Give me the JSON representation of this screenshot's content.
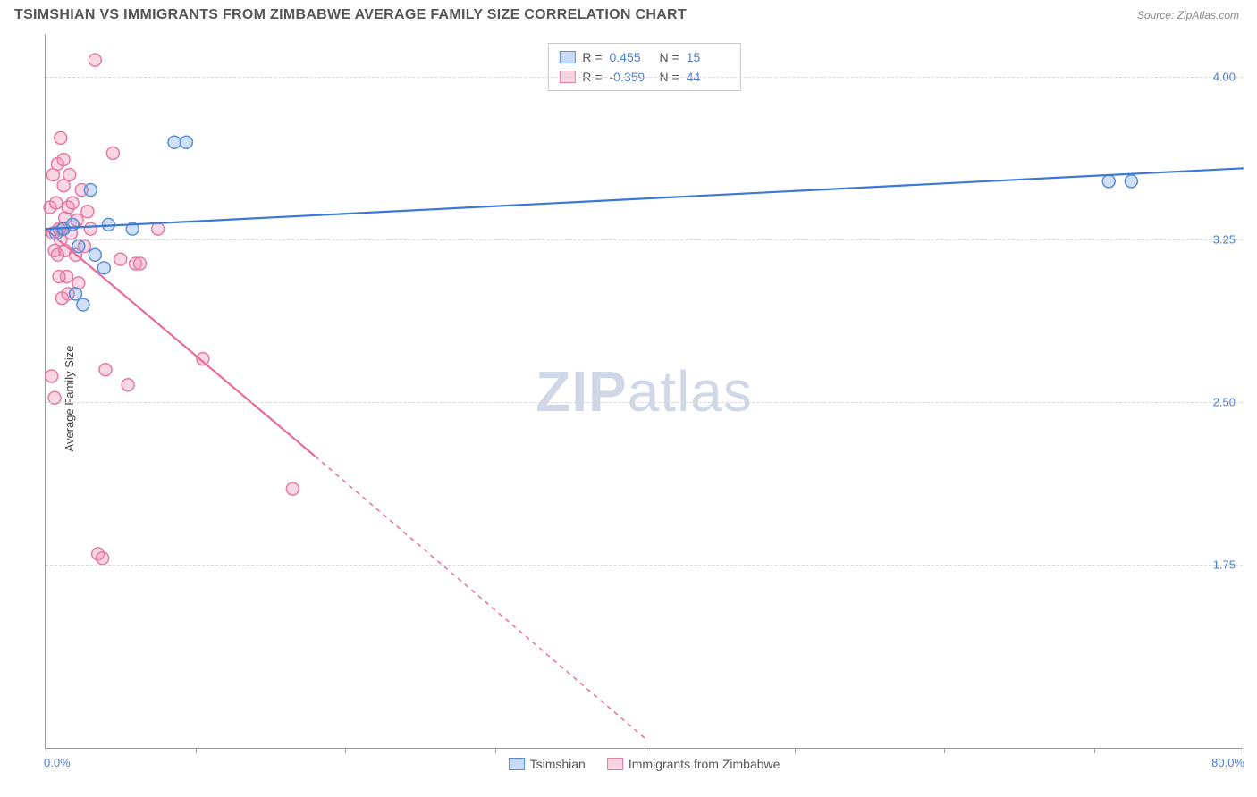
{
  "header": {
    "title": "TSIMSHIAN VS IMMIGRANTS FROM ZIMBABWE AVERAGE FAMILY SIZE CORRELATION CHART",
    "source": "Source: ZipAtlas.com"
  },
  "watermark": {
    "zip": "ZIP",
    "atlas": "atlas"
  },
  "chart": {
    "type": "scatter",
    "y_axis_label": "Average Family Size",
    "xlim": [
      0,
      80
    ],
    "ylim": [
      0.9,
      4.2
    ],
    "x_tick_labels": {
      "min": "0.0%",
      "max": "80.0%"
    },
    "x_ticks_pct": [
      0,
      10,
      20,
      30,
      40,
      50,
      60,
      70,
      80
    ],
    "y_ticks": [
      1.75,
      2.5,
      3.25,
      4.0
    ],
    "y_tick_labels": [
      "1.75",
      "2.50",
      "3.25",
      "4.00"
    ],
    "grid_color": "#d8d8d8",
    "background_color": "#ffffff",
    "marker_radius": 7,
    "marker_stroke_width": 1.5,
    "line_width": 2.2,
    "series": {
      "blue": {
        "label": "Tsimshian",
        "R": "0.455",
        "N": "15",
        "fill": "rgba(120,165,230,0.35)",
        "stroke": "#5a8ed8",
        "line_color": "#3b78d8",
        "points": [
          [
            0.7,
            3.28
          ],
          [
            1.2,
            3.3
          ],
          [
            1.8,
            3.32
          ],
          [
            2.2,
            3.22
          ],
          [
            2.5,
            2.95
          ],
          [
            3.0,
            3.48
          ],
          [
            3.3,
            3.18
          ],
          [
            3.9,
            3.12
          ],
          [
            4.2,
            3.32
          ],
          [
            5.8,
            3.3
          ],
          [
            8.6,
            3.7
          ],
          [
            9.4,
            3.7
          ],
          [
            71.0,
            3.52
          ],
          [
            72.5,
            3.52
          ],
          [
            2.0,
            3.0
          ]
        ],
        "trend": {
          "x1": 0,
          "y1": 3.3,
          "x2": 80,
          "y2": 3.58
        }
      },
      "pink": {
        "label": "Immigrants from Zimbabwe",
        "R": "-0.359",
        "N": "44",
        "fill": "rgba(240,140,175,0.35)",
        "stroke": "#e57ba5",
        "line_color": "#ea6b9a",
        "points": [
          [
            0.3,
            3.4
          ],
          [
            0.4,
            2.62
          ],
          [
            0.5,
            3.55
          ],
          [
            0.5,
            3.28
          ],
          [
            0.6,
            3.2
          ],
          [
            0.6,
            2.52
          ],
          [
            0.7,
            3.42
          ],
          [
            0.8,
            3.18
          ],
          [
            0.8,
            3.6
          ],
          [
            0.9,
            3.3
          ],
          [
            1.0,
            3.25
          ],
          [
            1.0,
            3.72
          ],
          [
            1.1,
            2.98
          ],
          [
            1.1,
            3.3
          ],
          [
            1.2,
            3.5
          ],
          [
            1.3,
            3.2
          ],
          [
            1.3,
            3.35
          ],
          [
            1.4,
            3.08
          ],
          [
            1.5,
            3.4
          ],
          [
            1.5,
            3.0
          ],
          [
            1.6,
            3.55
          ],
          [
            1.7,
            3.28
          ],
          [
            1.8,
            3.42
          ],
          [
            2.0,
            3.18
          ],
          [
            2.1,
            3.34
          ],
          [
            2.2,
            3.05
          ],
          [
            2.4,
            3.48
          ],
          [
            2.6,
            3.22
          ],
          [
            3.0,
            3.3
          ],
          [
            3.3,
            4.08
          ],
          [
            3.5,
            1.8
          ],
          [
            3.8,
            1.78
          ],
          [
            4.0,
            2.65
          ],
          [
            4.5,
            3.65
          ],
          [
            5.0,
            3.16
          ],
          [
            5.5,
            2.58
          ],
          [
            6.0,
            3.14
          ],
          [
            6.3,
            3.14
          ],
          [
            7.5,
            3.3
          ],
          [
            10.5,
            2.7
          ],
          [
            16.5,
            2.1
          ],
          [
            1.2,
            3.62
          ],
          [
            0.9,
            3.08
          ],
          [
            2.8,
            3.38
          ]
        ],
        "trend_solid": {
          "x1": 0,
          "y1": 3.3,
          "x2": 18,
          "y2": 2.25
        },
        "trend_dashed": {
          "x1": 18,
          "y1": 2.25,
          "x2": 40,
          "y2": 0.95
        }
      }
    }
  },
  "legend": {
    "r_prefix": "R  =",
    "n_prefix": "N  ="
  }
}
